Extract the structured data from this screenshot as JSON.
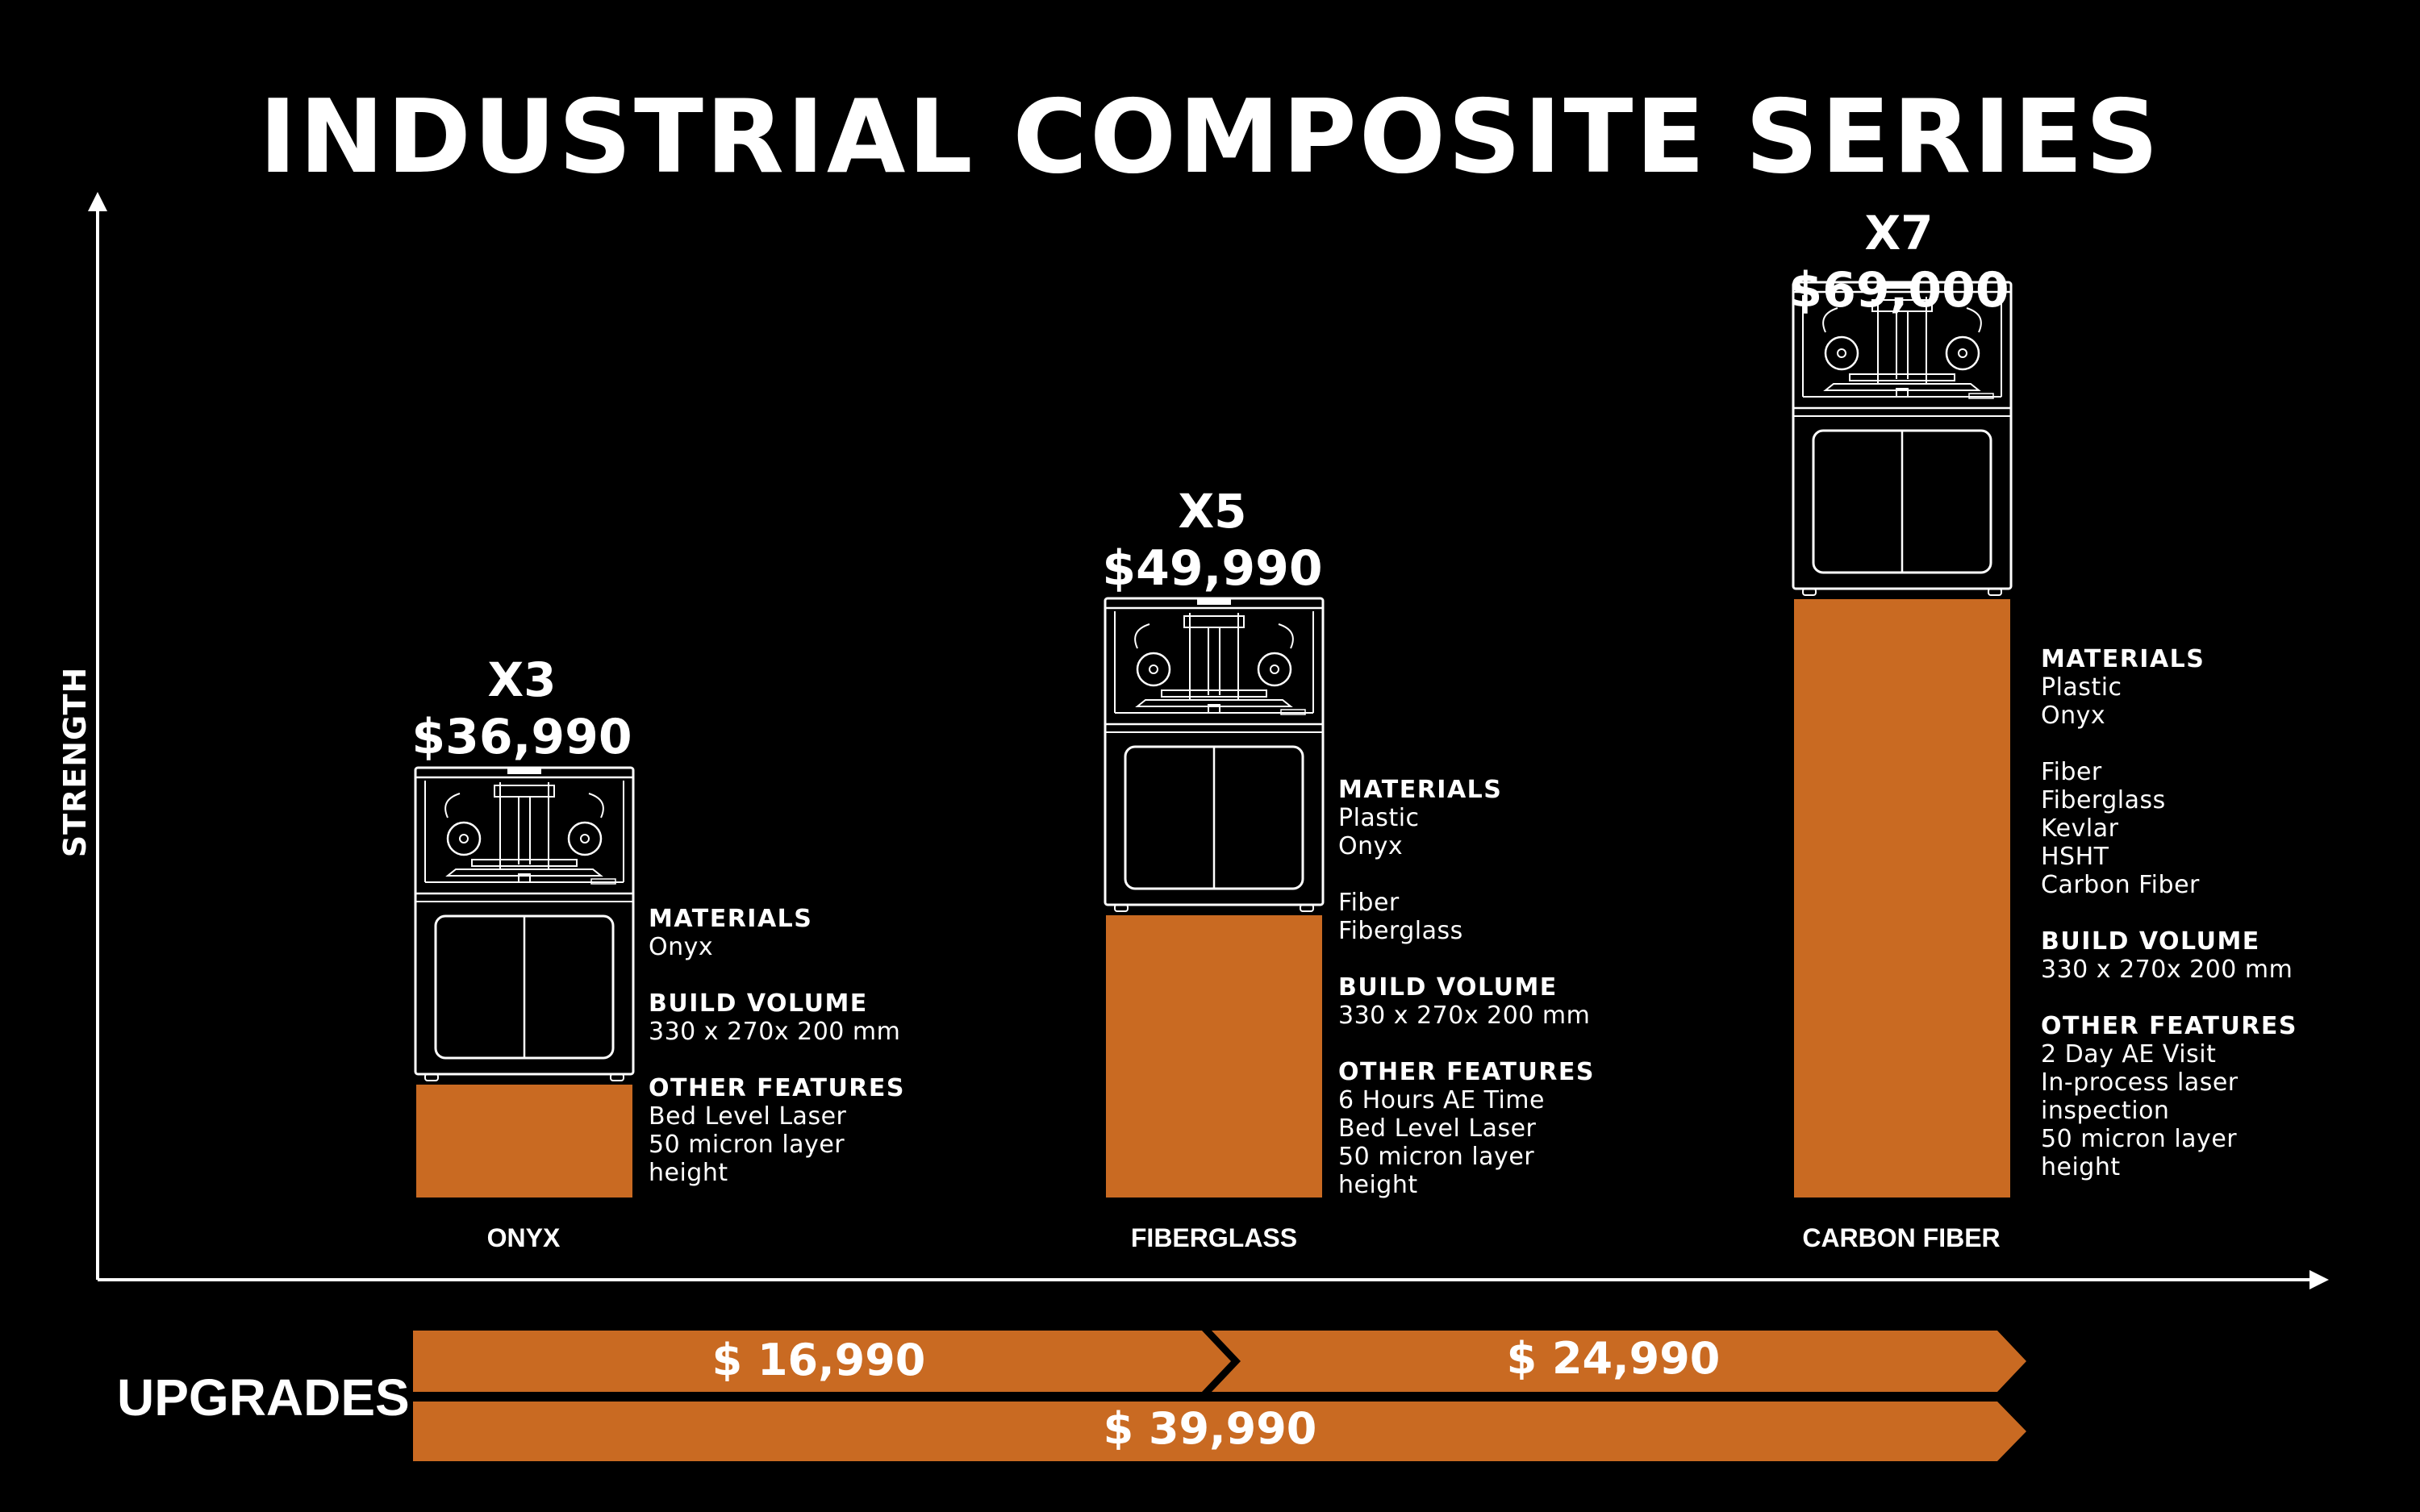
{
  "title": "INDUSTRIAL COMPOSITE SERIES",
  "chart_data": {
    "type": "bar",
    "title": "INDUSTRIAL COMPOSITE SERIES",
    "xlabel": "",
    "ylabel": "STRENGTH",
    "categories": [
      "ONYX",
      "FIBERGLASS",
      "CARBON FIBER"
    ],
    "values": [
      1,
      2.5,
      5.3
    ],
    "bar_color": "#C96A22",
    "models": [
      {
        "name": "X3",
        "price": "$36,990",
        "info": [
          {
            "heading": "MATERIALS",
            "lines": [
              "Onyx"
            ]
          },
          {
            "heading": "BUILD VOLUME",
            "lines": [
              "330 x 270x 200 mm"
            ]
          },
          {
            "heading": "OTHER FEATURES",
            "lines": [
              "Bed Level Laser",
              "50 micron layer",
              "height"
            ]
          }
        ]
      },
      {
        "name": "X5",
        "price": "$49,990",
        "info": [
          {
            "heading": "MATERIALS",
            "lines": [
              "Plastic",
              "Onyx"
            ]
          },
          {
            "heading": "",
            "lines": [
              "Fiber",
              "Fiberglass"
            ]
          },
          {
            "heading": "BUILD VOLUME",
            "lines": [
              "330 x 270x 200 mm"
            ]
          },
          {
            "heading": "OTHER FEATURES",
            "lines": [
              "6 Hours AE Time",
              "Bed Level Laser",
              "50 micron layer",
              "height"
            ]
          }
        ]
      },
      {
        "name": "X7",
        "price": "$69,000",
        "info": [
          {
            "heading": "MATERIALS",
            "lines": [
              "Plastic",
              "Onyx"
            ]
          },
          {
            "heading": "",
            "lines": [
              "Fiber",
              "Fiberglass",
              "Kevlar",
              "HSHT",
              "Carbon Fiber"
            ]
          },
          {
            "heading": "BUILD VOLUME",
            "lines": [
              "330 x 270x 200 mm"
            ]
          },
          {
            "heading": "OTHER FEATURES",
            "lines": [
              "2 Day AE Visit",
              "In-process laser",
              "inspection",
              "50 micron layer",
              "height"
            ]
          }
        ]
      }
    ],
    "upgrades": {
      "label": "UPGRADES",
      "items": [
        {
          "from": "X3",
          "to": "X5",
          "price": "$ 16,990"
        },
        {
          "from": "X5",
          "to": "X7",
          "price": "$ 24,990"
        },
        {
          "from": "X3",
          "to": "X7",
          "price": "$ 39,990"
        }
      ]
    }
  }
}
